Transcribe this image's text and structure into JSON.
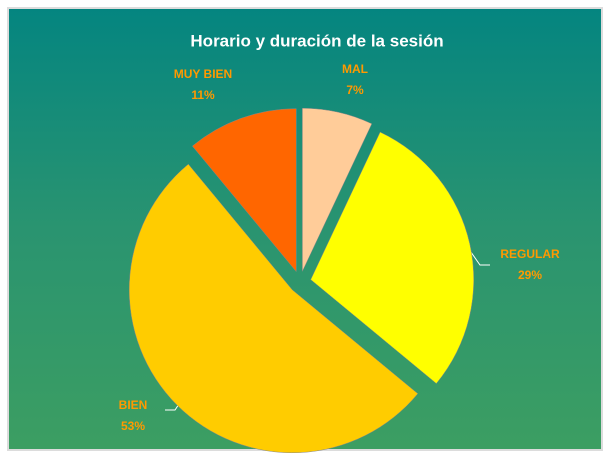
{
  "chart_data": {
    "type": "pie",
    "title": "Horario y duración de la sesión",
    "categories": [
      "MAL",
      "REGULAR",
      "BIEN",
      "MUY BIEN"
    ],
    "values": [
      7,
      29,
      53,
      11
    ],
    "value_labels": [
      "7%",
      "29%",
      "53%",
      "11%"
    ],
    "colors": [
      "#ffcc99",
      "#ffff00",
      "#ffcc00",
      "#ff6600"
    ]
  }
}
